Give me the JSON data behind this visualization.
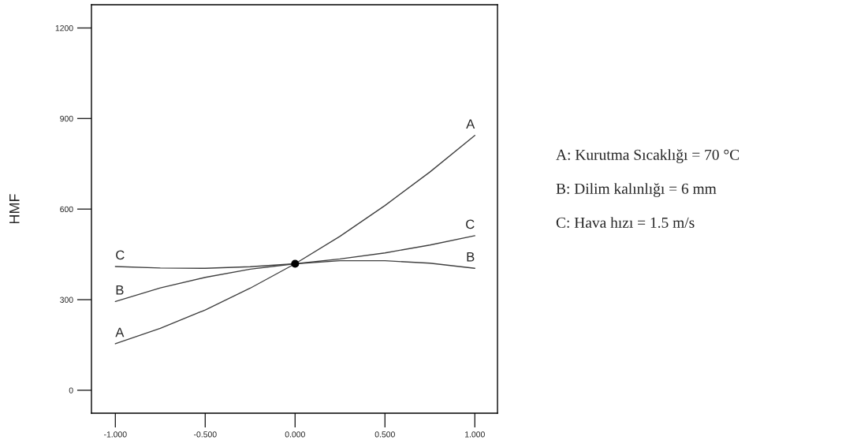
{
  "chart_data": {
    "type": "line",
    "ylabel": "HMF",
    "xlim": [
      -1.133,
      1.126
    ],
    "ylim": [
      -76,
      1277
    ],
    "xticks": [
      {
        "value": -1,
        "label": "-1.000"
      },
      {
        "value": -0.5,
        "label": "-0.500"
      },
      {
        "value": 0,
        "label": "0.000"
      },
      {
        "value": 0.5,
        "label": "0.500"
      },
      {
        "value": 1,
        "label": "1.000"
      }
    ],
    "yticks": [
      0,
      300,
      600,
      900,
      1200
    ],
    "grid": false,
    "legend": false,
    "x": [
      -1,
      -0.75,
      -0.5,
      -0.25,
      0,
      0.25,
      0.5,
      0.75,
      1
    ],
    "series": [
      {
        "name": "A",
        "color": "#404040",
        "values": [
          154,
          205,
          266,
          338,
          419,
          510,
          612,
          723,
          844
        ]
      },
      {
        "name": "B",
        "color": "#404040",
        "values": [
          294,
          339,
          374,
          401,
          419,
          429,
          429,
          421,
          404
        ]
      },
      {
        "name": "C",
        "color": "#404040",
        "values": [
          410,
          405,
          404,
          409,
          419,
          435,
          455,
          481,
          512
        ]
      },
      {
        "type": "scatter",
        "x": [
          0
        ],
        "values": [
          419
        ],
        "color": "#000000",
        "marker": "circle"
      }
    ],
    "annotations": [
      "A: Kurutma Sıcaklığı = 70 °C",
      "B: Dilim kalınlığı = 6 mm",
      "C: Hava hızı = 1.5 m/s"
    ]
  }
}
